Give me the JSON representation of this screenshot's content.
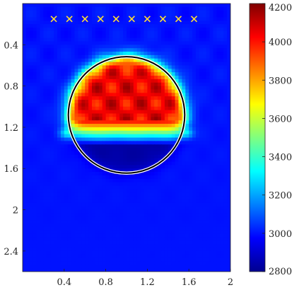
{
  "chart_data": {
    "type": "heatmap",
    "title": "",
    "xlabel": "",
    "ylabel": "",
    "xlim": [
      0.0,
      2.0
    ],
    "ylim": [
      0.0,
      2.6
    ],
    "y_axis_direction": "downward",
    "x_ticks": [
      "0.4",
      "0.8",
      "1.2",
      "1.6",
      "2"
    ],
    "y_ticks": [
      "0.4",
      "0.8",
      "1.2",
      "1.6",
      "2",
      "2.4"
    ],
    "colorbar": {
      "colormap": "jet",
      "range": [
        2800,
        4200
      ],
      "ticks": [
        "2800",
        "3000",
        "3200",
        "3400",
        "3600",
        "3800",
        "4000",
        "4200"
      ]
    },
    "background_value": 3000,
    "inclusion": {
      "shape": "circle",
      "center": [
        1.0,
        1.08
      ],
      "radius": 0.56,
      "outline_color": "#000000",
      "upper_value": 4050,
      "lower_value": 2850
    },
    "sources": {
      "marker": "x",
      "color": "#ffe033",
      "y": 0.15,
      "x": [
        0.3,
        0.45,
        0.6,
        0.75,
        0.9,
        1.05,
        1.2,
        1.35,
        1.5,
        1.65
      ]
    },
    "grid": false
  }
}
